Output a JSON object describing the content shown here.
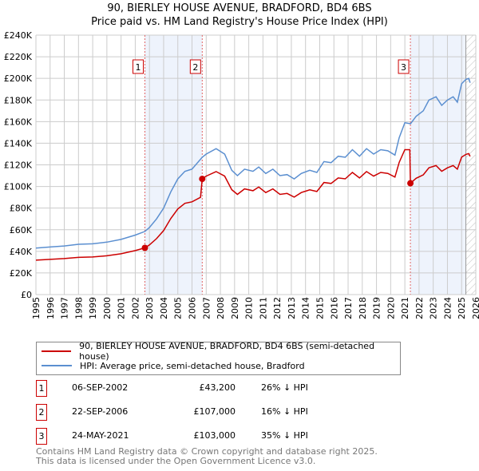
{
  "chart_data": {
    "type": "line",
    "title": "90, BIERLEY HOUSE AVENUE, BRADFORD, BD4 6BS",
    "subtitle": "Price paid vs. HM Land Registry's House Price Index (HPI)",
    "xlim": [
      1995,
      2026
    ],
    "ylim": [
      0,
      240000
    ],
    "y_ticks": [
      0,
      20000,
      40000,
      60000,
      80000,
      100000,
      120000,
      140000,
      160000,
      180000,
      200000,
      220000,
      240000
    ],
    "y_tick_labels": [
      "£0",
      "£20K",
      "£40K",
      "£60K",
      "£80K",
      "£100K",
      "£120K",
      "£140K",
      "£160K",
      "£180K",
      "£200K",
      "£220K",
      "£240K"
    ],
    "x_tick_labels": [
      "1995",
      "1996",
      "1997",
      "1998",
      "1999",
      "2000",
      "2001",
      "2002",
      "2003",
      "2004",
      "2005",
      "2006",
      "2007",
      "2008",
      "2009",
      "2010",
      "2011",
      "2012",
      "2013",
      "2014",
      "2015",
      "2016",
      "2017",
      "2018",
      "2019",
      "2020",
      "2021",
      "2022",
      "2023",
      "2024",
      "2025",
      "2026"
    ],
    "grid": true,
    "series": [
      {
        "name": "90, BIERLEY HOUSE AVENUE, BRADFORD, BD4 6BS (semi-detached house)",
        "color": "#cc0000",
        "x": [
          1995,
          1996,
          1997,
          1998,
          1999,
          2000,
          2001,
          2002,
          2002.68,
          2003,
          2003.5,
          2004,
          2004.5,
          2005,
          2005.5,
          2006,
          2006.6,
          2006.72,
          2007,
          2007.7,
          2008.3,
          2008.8,
          2009.2,
          2009.7,
          2010.3,
          2010.7,
          2011.2,
          2011.7,
          2012.2,
          2012.7,
          2013.2,
          2013.7,
          2014.3,
          2014.8,
          2015.3,
          2015.8,
          2016.3,
          2016.8,
          2017.3,
          2017.8,
          2018.3,
          2018.8,
          2019.3,
          2019.8,
          2020.3,
          2020.6,
          2021,
          2021.35,
          2021.39,
          2021.8,
          2022.3,
          2022.7,
          2023.2,
          2023.6,
          2024,
          2024.4,
          2024.7,
          2025,
          2025.3,
          2025.5,
          2025.6
        ],
        "y": [
          31800,
          32600,
          33300,
          34400,
          34800,
          35900,
          37700,
          40700,
          43200,
          45900,
          51800,
          59200,
          70300,
          79200,
          84400,
          85800,
          90000,
          107000,
          109600,
          113800,
          109600,
          97000,
          92700,
          97800,
          96100,
          99500,
          94400,
          97800,
          92700,
          93600,
          90200,
          94400,
          96900,
          95300,
          103700,
          102800,
          107900,
          107100,
          113000,
          107900,
          113800,
          109600,
          113000,
          112100,
          108700,
          122200,
          134000,
          134000,
          103000,
          107600,
          110800,
          117300,
          119300,
          114100,
          117300,
          119300,
          116000,
          127100,
          129700,
          130400,
          127800
        ]
      },
      {
        "name": "HPI: Average price, semi-detached house, Bradford",
        "color": "#5b8fd0",
        "x": [
          1995,
          1996,
          1997,
          1998,
          1999,
          2000,
          2001,
          2002,
          2002.68,
          2003,
          2003.5,
          2004,
          2004.5,
          2005,
          2005.5,
          2006,
          2006.72,
          2007,
          2007.7,
          2008.3,
          2008.8,
          2009.2,
          2009.7,
          2010.3,
          2010.7,
          2011.2,
          2011.7,
          2012.2,
          2012.7,
          2013.2,
          2013.7,
          2014.3,
          2014.8,
          2015.3,
          2015.8,
          2016.3,
          2016.8,
          2017.3,
          2017.8,
          2018.3,
          2018.8,
          2019.3,
          2019.8,
          2020.3,
          2020.6,
          2021,
          2021.4,
          2021.8,
          2022.3,
          2022.7,
          2023.2,
          2023.6,
          2024,
          2024.4,
          2024.7,
          2025,
          2025.3,
          2025.5,
          2025.6
        ],
        "y": [
          43000,
          44000,
          45000,
          46500,
          47000,
          48500,
          51000,
          55000,
          58400,
          62000,
          70000,
          80000,
          95000,
          107000,
          114000,
          116000,
          127000,
          130000,
          135000,
          130000,
          115000,
          110000,
          116000,
          114000,
          118000,
          112000,
          116000,
          110000,
          111000,
          107000,
          112000,
          115000,
          113000,
          123000,
          122000,
          128000,
          127000,
          134000,
          128000,
          135000,
          130000,
          134000,
          133000,
          129000,
          145000,
          159000,
          158000,
          165000,
          170000,
          180000,
          183000,
          175000,
          180000,
          183000,
          178000,
          195000,
          199000,
          200000,
          196000
        ]
      }
    ],
    "sales": [
      {
        "label": "1",
        "x": 2002.68,
        "y": 43200
      },
      {
        "label": "2",
        "x": 2006.72,
        "y": 107000
      },
      {
        "label": "3",
        "x": 2021.39,
        "y": 103000
      }
    ],
    "forecast_start": 2025.3
  },
  "legend": {
    "property": "90, BIERLEY HOUSE AVENUE, BRADFORD, BD4 6BS (semi-detached house)",
    "hpi": "HPI: Average price, semi-detached house, Bradford"
  },
  "transactions": [
    {
      "num": "1",
      "date": "06-SEP-2002",
      "price": "£43,200",
      "hpi": "26% ↓ HPI"
    },
    {
      "num": "2",
      "date": "22-SEP-2006",
      "price": "£107,000",
      "hpi": "16% ↓ HPI"
    },
    {
      "num": "3",
      "date": "24-MAY-2021",
      "price": "£103,000",
      "hpi": "35% ↓ HPI"
    }
  ],
  "footer": {
    "line1": "Contains HM Land Registry data © Crown copyright and database right 2025.",
    "line2": "This data is licensed under the Open Government Licence v3.0."
  }
}
